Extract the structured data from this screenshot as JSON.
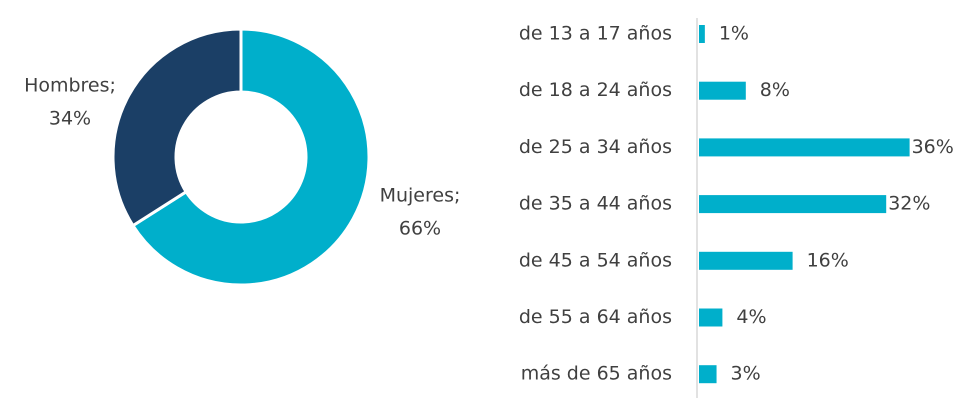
{
  "chart_data": [
    {
      "type": "donut",
      "categories": [
        "Mujeres;",
        "Hombres;"
      ],
      "values": [
        66,
        34
      ],
      "value_labels": [
        "66%",
        "34%"
      ],
      "colors": [
        "#00afcb",
        "#1b3f66"
      ]
    },
    {
      "type": "hbar",
      "categories": [
        "de 13 a 17 años",
        "de 18 a 24 años",
        "de 25 a 34 años",
        "de 35 a 44 años",
        "de 45 a 54 años",
        "de 55 a 64 años",
        "más de 65 años"
      ],
      "values": [
        1,
        8,
        36,
        32,
        16,
        4,
        3
      ],
      "value_labels": [
        "1%",
        "8%",
        "36%",
        "32%",
        "16%",
        "4%",
        "3%"
      ],
      "color": "#00afcb"
    }
  ]
}
